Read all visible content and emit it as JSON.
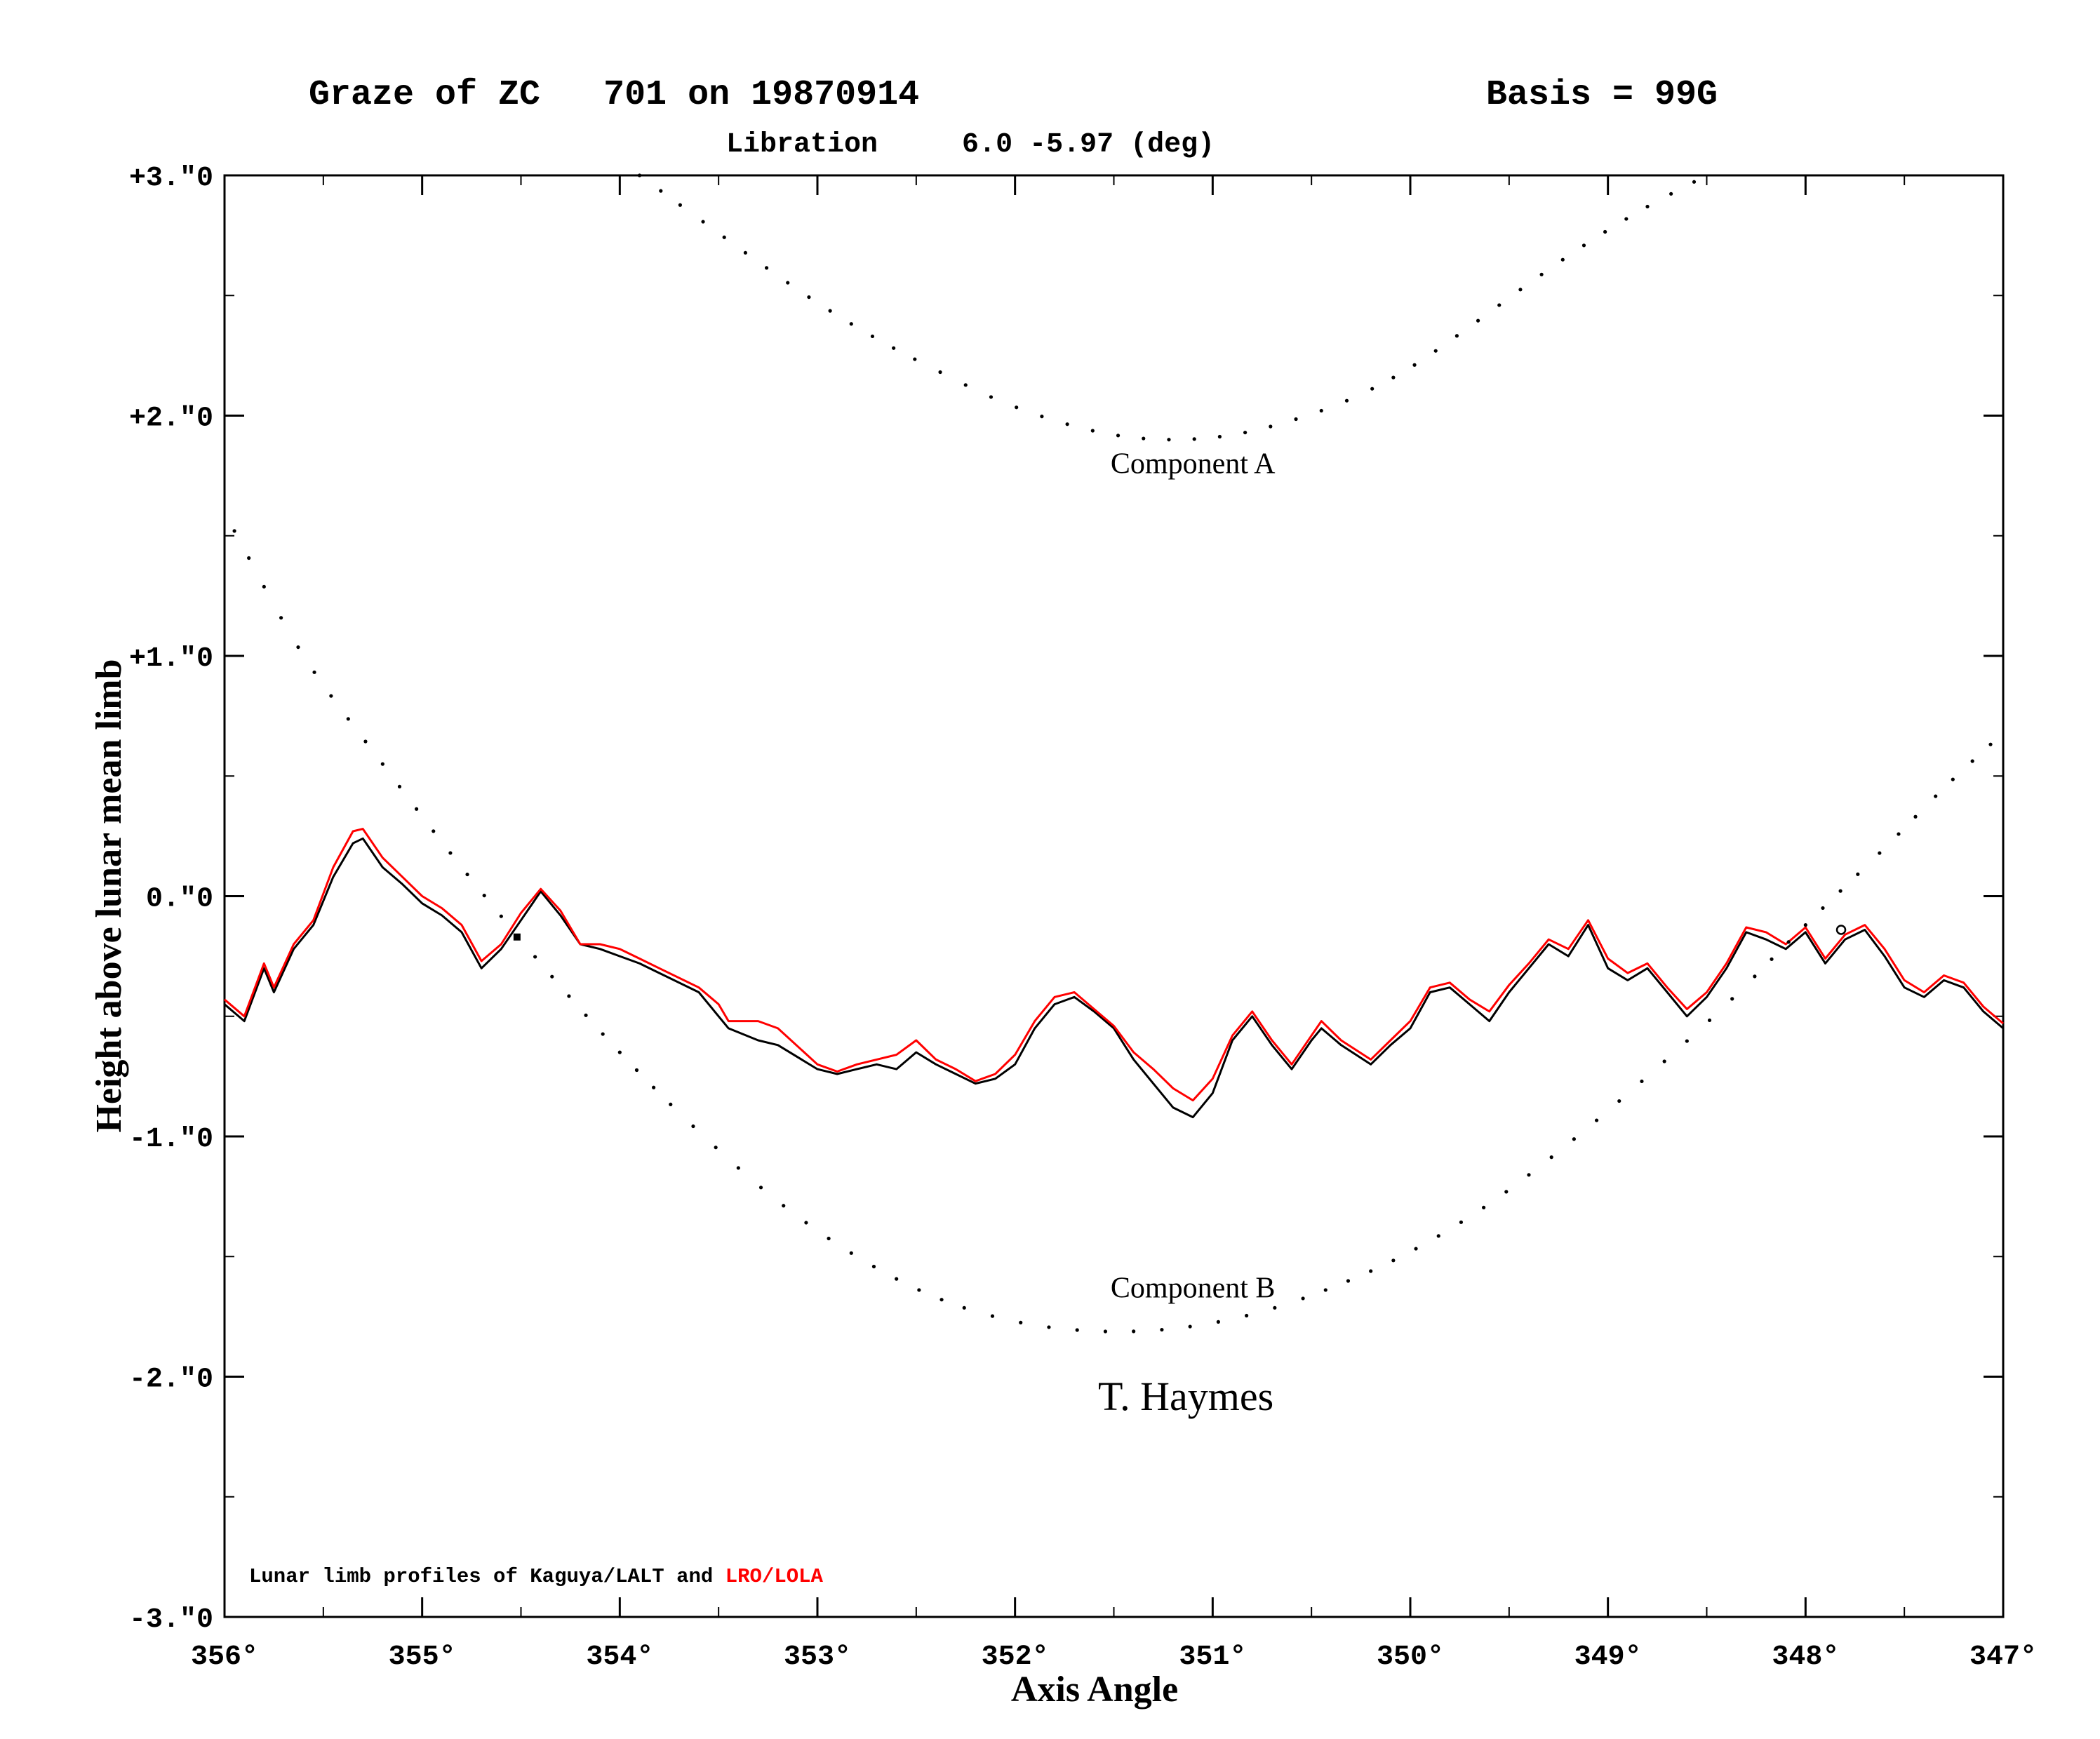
{
  "chart_data": {
    "type": "line",
    "title_left": "Graze of ZC   701 on 19870914",
    "title_right": "Basis = 99G",
    "subtitle": "Libration     6.0 -5.97 (deg)",
    "xlabel": "Axis Angle",
    "ylabel": "Height above lunar mean limb",
    "x_reversed": true,
    "xlim": [
      356,
      347
    ],
    "ylim": [
      -3,
      3
    ],
    "x_ticks": [
      356,
      355,
      354,
      353,
      352,
      351,
      350,
      349,
      348,
      347
    ],
    "x_tick_labels": [
      "356°",
      "355°",
      "354°",
      "353°",
      "352°",
      "351°",
      "350°",
      "349°",
      "348°",
      "347°"
    ],
    "y_ticks": [
      3,
      2,
      1,
      0,
      -1,
      -2,
      -3
    ],
    "y_tick_labels": [
      "+3.\"0",
      "+2.\"0",
      "+1.\"0",
      "0.\"0",
      "-1.\"0",
      "-2.\"0",
      "-3.\"0"
    ],
    "observer_label": "T. Haymes",
    "footnote": {
      "prefix": "Lunar limb profiles of Kaguya/LALT and ",
      "highlight": "LRO/LOLA",
      "highlight_color": "#ff0000"
    },
    "series": [
      {
        "style": "solid",
        "color": "#000000",
        "label": "Kaguya/LALT",
        "x": [
          356.0,
          355.9,
          355.8,
          355.75,
          355.65,
          355.55,
          355.45,
          355.35,
          355.3,
          355.2,
          355.1,
          355.0,
          354.9,
          354.8,
          354.7,
          354.6,
          354.5,
          354.4,
          354.3,
          354.2,
          354.1,
          354.0,
          353.9,
          353.8,
          353.6,
          353.5,
          353.45,
          353.3,
          353.2,
          353.0,
          352.9,
          352.8,
          352.7,
          352.6,
          352.5,
          352.4,
          352.3,
          352.2,
          352.1,
          352.0,
          351.9,
          351.8,
          351.7,
          351.6,
          351.5,
          351.4,
          351.3,
          351.2,
          351.1,
          351.0,
          350.9,
          350.8,
          350.7,
          350.6,
          350.5,
          350.45,
          350.35,
          350.2,
          350.1,
          350.0,
          349.9,
          349.8,
          349.7,
          349.6,
          349.5,
          349.4,
          349.3,
          349.2,
          349.1,
          349.0,
          348.9,
          348.8,
          348.7,
          348.6,
          348.5,
          348.4,
          348.3,
          348.2,
          348.1,
          348.0,
          347.9,
          347.8,
          347.7,
          347.6,
          347.5,
          347.4,
          347.3,
          347.2,
          347.1,
          347.0
        ],
        "y": [
          -0.45,
          -0.52,
          -0.3,
          -0.4,
          -0.22,
          -0.12,
          0.08,
          0.22,
          0.24,
          0.12,
          0.05,
          -0.03,
          -0.08,
          -0.15,
          -0.3,
          -0.22,
          -0.1,
          0.02,
          -0.08,
          -0.2,
          -0.22,
          -0.25,
          -0.28,
          -0.32,
          -0.4,
          -0.5,
          -0.55,
          -0.6,
          -0.62,
          -0.72,
          -0.74,
          -0.72,
          -0.7,
          -0.72,
          -0.65,
          -0.7,
          -0.74,
          -0.78,
          -0.76,
          -0.7,
          -0.55,
          -0.45,
          -0.42,
          -0.48,
          -0.55,
          -0.68,
          -0.78,
          -0.88,
          -0.92,
          -0.82,
          -0.6,
          -0.5,
          -0.62,
          -0.72,
          -0.6,
          -0.55,
          -0.62,
          -0.7,
          -0.62,
          -0.55,
          -0.4,
          -0.38,
          -0.45,
          -0.52,
          -0.4,
          -0.3,
          -0.2,
          -0.25,
          -0.12,
          -0.3,
          -0.35,
          -0.3,
          -0.4,
          -0.5,
          -0.42,
          -0.3,
          -0.15,
          -0.18,
          -0.22,
          -0.15,
          -0.28,
          -0.18,
          -0.14,
          -0.25,
          -0.38,
          -0.42,
          -0.35,
          -0.38,
          -0.48,
          -0.55
        ]
      },
      {
        "style": "solid",
        "color": "#ff0000",
        "label": "LRO/LOLA",
        "x": [
          356.0,
          355.9,
          355.8,
          355.75,
          355.65,
          355.55,
          355.45,
          355.35,
          355.3,
          355.2,
          355.1,
          355.0,
          354.9,
          354.8,
          354.7,
          354.6,
          354.5,
          354.4,
          354.3,
          354.2,
          354.1,
          354.0,
          353.9,
          353.8,
          353.6,
          353.5,
          353.45,
          353.3,
          353.2,
          353.0,
          352.9,
          352.8,
          352.7,
          352.6,
          352.5,
          352.4,
          352.3,
          352.2,
          352.1,
          352.0,
          351.9,
          351.8,
          351.7,
          351.6,
          351.5,
          351.4,
          351.3,
          351.2,
          351.1,
          351.0,
          350.9,
          350.8,
          350.7,
          350.6,
          350.5,
          350.45,
          350.35,
          350.2,
          350.1,
          350.0,
          349.9,
          349.8,
          349.7,
          349.6,
          349.5,
          349.4,
          349.3,
          349.2,
          349.1,
          349.0,
          348.9,
          348.8,
          348.7,
          348.6,
          348.5,
          348.4,
          348.3,
          348.2,
          348.1,
          348.0,
          347.9,
          347.8,
          347.7,
          347.6,
          347.5,
          347.4,
          347.3,
          347.2,
          347.1,
          347.0
        ],
        "y": [
          -0.43,
          -0.5,
          -0.28,
          -0.38,
          -0.2,
          -0.1,
          0.12,
          0.27,
          0.28,
          0.16,
          0.08,
          0.0,
          -0.05,
          -0.12,
          -0.27,
          -0.2,
          -0.07,
          0.03,
          -0.06,
          -0.2,
          -0.2,
          -0.22,
          -0.26,
          -0.3,
          -0.38,
          -0.45,
          -0.52,
          -0.52,
          -0.55,
          -0.7,
          -0.73,
          -0.7,
          -0.68,
          -0.66,
          -0.6,
          -0.68,
          -0.72,
          -0.77,
          -0.74,
          -0.66,
          -0.52,
          -0.42,
          -0.4,
          -0.47,
          -0.54,
          -0.65,
          -0.72,
          -0.8,
          -0.85,
          -0.76,
          -0.58,
          -0.48,
          -0.6,
          -0.7,
          -0.58,
          -0.52,
          -0.6,
          -0.68,
          -0.6,
          -0.52,
          -0.38,
          -0.36,
          -0.43,
          -0.48,
          -0.37,
          -0.28,
          -0.18,
          -0.22,
          -0.1,
          -0.26,
          -0.32,
          -0.28,
          -0.38,
          -0.47,
          -0.4,
          -0.28,
          -0.13,
          -0.15,
          -0.2,
          -0.13,
          -0.26,
          -0.16,
          -0.12,
          -0.22,
          -0.35,
          -0.4,
          -0.33,
          -0.36,
          -0.46,
          -0.53
        ]
      },
      {
        "style": "dotted",
        "color": "#000000",
        "label": "Component A",
        "x": [
          353.9,
          353.6,
          353.3,
          353.0,
          352.7,
          352.4,
          352.1,
          351.8,
          351.5,
          351.2,
          350.9,
          350.6,
          350.3,
          350.0,
          349.7,
          349.4,
          349.1,
          348.8,
          348.5
        ],
        "y": [
          3.0,
          2.82,
          2.64,
          2.47,
          2.32,
          2.19,
          2.07,
          1.98,
          1.92,
          1.9,
          1.92,
          1.98,
          2.07,
          2.2,
          2.37,
          2.55,
          2.72,
          2.87,
          3.0
        ]
      },
      {
        "style": "dotted",
        "color": "#000000",
        "label": "Component B",
        "x": [
          355.95,
          355.6,
          355.2,
          354.8,
          354.4,
          354.0,
          353.6,
          353.2,
          352.8,
          352.4,
          352.0,
          351.6,
          351.2,
          350.8,
          350.4,
          350.0,
          349.6,
          349.2,
          348.8,
          348.4,
          348.0,
          347.6,
          347.3,
          347.0
        ],
        "y": [
          1.52,
          1.0,
          0.55,
          0.12,
          -0.28,
          -0.65,
          -0.98,
          -1.27,
          -1.5,
          -1.67,
          -1.77,
          -1.81,
          -1.8,
          -1.74,
          -1.63,
          -1.48,
          -1.28,
          -1.03,
          -0.75,
          -0.45,
          -0.12,
          0.2,
          0.45,
          0.68
        ]
      }
    ],
    "annotations": [
      {
        "text": "Component A",
        "x": 351.1,
        "y": 1.76
      },
      {
        "text": "Component B",
        "x": 351.1,
        "y": -1.67
      }
    ],
    "markers": [
      {
        "type": "filled-square",
        "x": 354.52,
        "y": -0.17
      },
      {
        "type": "open-circle",
        "x": 347.82,
        "y": -0.14
      }
    ]
  }
}
